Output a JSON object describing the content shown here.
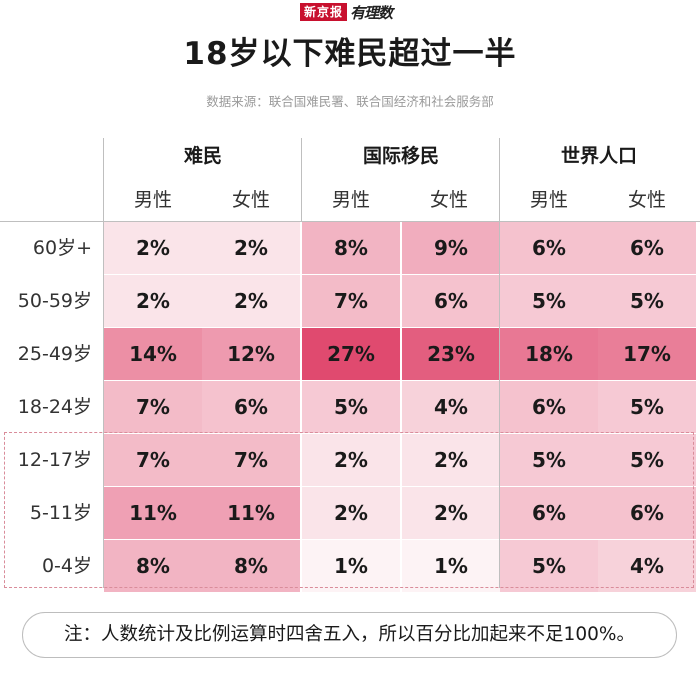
{
  "header": {
    "brand_red": "新京报",
    "brand_script": "有理数",
    "title": "18岁以下难民超过一半",
    "source": "数据来源：联合国难民署、联合国经济和社会服务部"
  },
  "note": "注：人数统计及比例运算时四舍五入，所以百分比加起来不足100%。",
  "chart_data": {
    "type": "table",
    "groups": [
      "难民",
      "国际移民",
      "世界人口"
    ],
    "columns": [
      "男性",
      "女性"
    ],
    "rows": [
      "60岁+",
      "50-59岁",
      "25-49岁",
      "18-24岁",
      "12-17岁",
      "5-11岁",
      "0-4岁"
    ],
    "values": [
      [
        2,
        2,
        8,
        9,
        6,
        6
      ],
      [
        2,
        2,
        7,
        6,
        5,
        5
      ],
      [
        14,
        12,
        27,
        23,
        18,
        17
      ],
      [
        7,
        6,
        5,
        4,
        6,
        5
      ],
      [
        7,
        7,
        2,
        2,
        5,
        5
      ],
      [
        11,
        11,
        2,
        2,
        6,
        6
      ],
      [
        8,
        8,
        1,
        1,
        5,
        4
      ]
    ],
    "unit": "%",
    "highlighted_rows": [
      "12-17岁",
      "5-11岁",
      "0-4岁"
    ],
    "colors": {
      "low": "#fdf3f5",
      "high": "#e04a6f",
      "highlight_border": "#d98c9a"
    }
  }
}
